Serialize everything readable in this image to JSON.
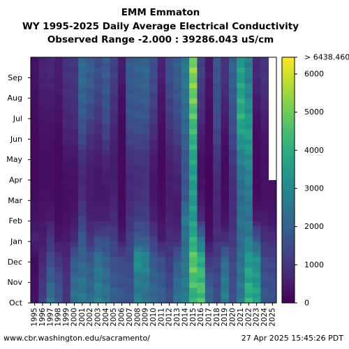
{
  "chart_data": {
    "type": "heatmap",
    "title": "EMM Emmaton",
    "subtitle": "WY 1995-2025 Daily Average Electrical Conductivity",
    "subtitle2": "Observed Range -2.000 : 39286.043 uS/cm",
    "x_tick_labels": [
      "1995",
      "1996",
      "1997",
      "1998",
      "1999",
      "2000",
      "2001",
      "2002",
      "2003",
      "2004",
      "2005",
      "2006",
      "2007",
      "2008",
      "2009",
      "2010",
      "2011",
      "2012",
      "2013",
      "2014",
      "2015",
      "2016",
      "2017",
      "2018",
      "2019",
      "2020",
      "2021",
      "2022",
      "2023",
      "2024",
      "2025"
    ],
    "y_tick_labels": [
      "Oct",
      "Nov",
      "Dec",
      "Jan",
      "Feb",
      "Mar",
      "Apr",
      "May",
      "Jun",
      "Jul",
      "Aug",
      "Sep"
    ],
    "colorbar": {
      "ticks": [
        0,
        1000,
        2000,
        3000,
        4000,
        5000,
        6000
      ],
      "tick_labels": [
        "0",
        "1000",
        "2000",
        "3000",
        "4000",
        "5000",
        "6000"
      ],
      "max_label": "> 6438.460",
      "range": [
        0,
        6438.46
      ],
      "colormap": "viridis"
    },
    "year_profile_uS_cm": {
      "1995": [
        300,
        250,
        200,
        600,
        300,
        200,
        150,
        150,
        150,
        200,
        250,
        300
      ],
      "1996": [
        1200,
        1000,
        700,
        500,
        400,
        300,
        250,
        250,
        300,
        400,
        500,
        600
      ],
      "1997": [
        2500,
        2000,
        1500,
        1000,
        500,
        300,
        250,
        250,
        300,
        400,
        500,
        700
      ],
      "1998": [
        1800,
        1500,
        1000,
        400,
        200,
        150,
        150,
        150,
        200,
        300,
        400,
        500
      ],
      "1999": [
        1000,
        900,
        700,
        500,
        300,
        250,
        300,
        400,
        600,
        700,
        800,
        900
      ],
      "2000": [
        2400,
        2200,
        1800,
        800,
        400,
        300,
        300,
        400,
        600,
        800,
        900,
        1000
      ],
      "2001": [
        2600,
        2400,
        2000,
        1800,
        1200,
        800,
        700,
        900,
        1500,
        1800,
        2000,
        2200
      ],
      "2002": [
        2200,
        2000,
        1800,
        1000,
        600,
        500,
        500,
        600,
        900,
        1400,
        1700,
        1900
      ],
      "2003": [
        2800,
        2600,
        2400,
        1500,
        600,
        400,
        400,
        500,
        700,
        1000,
        1300,
        1500
      ],
      "2004": [
        2500,
        2300,
        2000,
        1500,
        600,
        400,
        500,
        700,
        1200,
        1500,
        1700,
        1800
      ],
      "2005": [
        2000,
        1800,
        1500,
        1200,
        800,
        600,
        500,
        500,
        600,
        800,
        1000,
        1200
      ],
      "2006": [
        1800,
        1600,
        1400,
        500,
        200,
        150,
        150,
        150,
        150,
        200,
        300,
        500
      ],
      "2007": [
        1600,
        1500,
        1400,
        1200,
        900,
        700,
        700,
        900,
        1300,
        1600,
        1700,
        1800
      ],
      "2008": [
        2800,
        2600,
        3400,
        1800,
        1200,
        900,
        800,
        1000,
        1400,
        1700,
        1800,
        2000
      ],
      "2009": [
        2400,
        2600,
        3000,
        1800,
        1200,
        1000,
        900,
        1000,
        1300,
        1700,
        1900,
        2100
      ],
      "2010": [
        2200,
        2000,
        1800,
        1200,
        600,
        400,
        400,
        500,
        800,
        1100,
        1300,
        1500
      ],
      "2011": [
        2000,
        1800,
        1500,
        500,
        300,
        200,
        150,
        150,
        200,
        300,
        400,
        600
      ],
      "2012": [
        1500,
        1300,
        1100,
        800,
        600,
        500,
        500,
        600,
        800,
        1100,
        1300,
        1500
      ],
      "2013": [
        2400,
        2200,
        1800,
        800,
        500,
        500,
        600,
        800,
        1200,
        1500,
        1700,
        1900
      ],
      "2014": [
        2700,
        2600,
        2500,
        2300,
        2600,
        1800,
        1700,
        1800,
        2000,
        2200,
        2400,
        2600
      ],
      "2015": [
        4000,
        4600,
        4800,
        4000,
        3500,
        3500,
        3600,
        3800,
        4200,
        4600,
        5000,
        5200
      ],
      "2016": [
        4600,
        4400,
        4000,
        2500,
        800,
        400,
        300,
        300,
        500,
        800,
        1000,
        1200
      ],
      "2017": [
        2200,
        1800,
        1000,
        300,
        150,
        100,
        100,
        100,
        150,
        200,
        300,
        400
      ],
      "2018": [
        1500,
        1400,
        1200,
        900,
        700,
        700,
        800,
        1000,
        1300,
        1500,
        1600,
        1700
      ],
      "2019": [
        2800,
        2600,
        2200,
        800,
        300,
        200,
        200,
        200,
        300,
        500,
        700,
        900
      ],
      "2020": [
        1600,
        1500,
        1400,
        1100,
        900,
        800,
        900,
        1100,
        1400,
        1600,
        1800,
        2000
      ],
      "2021": [
        2600,
        2500,
        2400,
        2200,
        2400,
        2200,
        2400,
        2800,
        3400,
        4000,
        3800,
        3600
      ],
      "2022": [
        4200,
        3800,
        3500,
        2800,
        2400,
        2600,
        2900,
        3200,
        3600,
        3400,
        3000,
        2800
      ],
      "2023": [
        3800,
        3400,
        3200,
        1800,
        500,
        200,
        150,
        150,
        200,
        300,
        500,
        700
      ],
      "2024": [
        1800,
        1600,
        1400,
        900,
        500,
        300,
        300,
        300,
        400,
        600,
        800,
        1000
      ],
      "2025": [
        1600,
        1500,
        1300,
        800,
        400,
        300,
        null,
        null,
        null,
        null,
        null,
        null
      ]
    },
    "grid": false
  },
  "footer": {
    "url": "www.cbr.washington.edu/sacramento/",
    "timestamp": "27 Apr 2025 15:45:26 PDT"
  }
}
